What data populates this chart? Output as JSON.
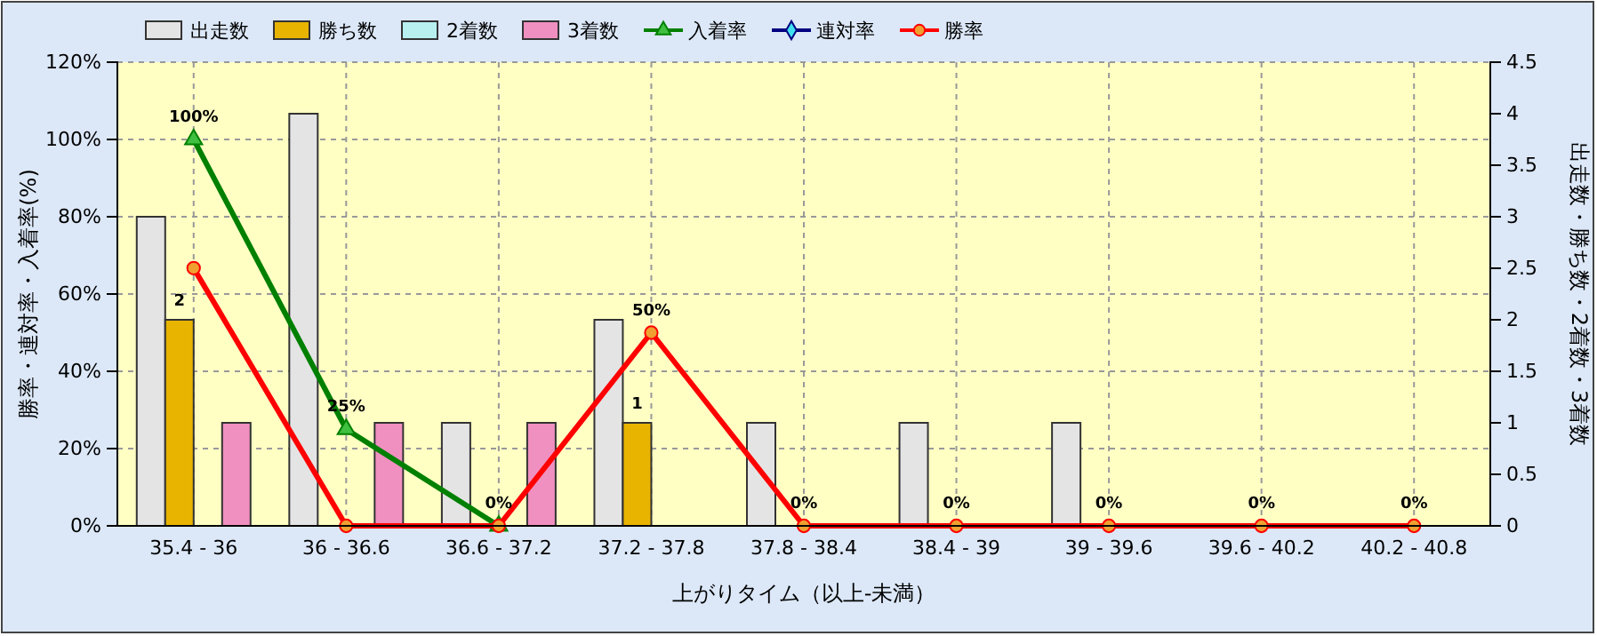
{
  "chart_data": {
    "type": "bar",
    "xlabel": "上がりタイム（以上-未満）",
    "ylabel": "勝率・連対率・入着率(%)",
    "y2label": "出走数・勝ち数・2着数・3着数",
    "categories": [
      "35.4 - 36",
      "36 - 36.6",
      "36.6 - 37.2",
      "37.2 - 37.8",
      "37.8 - 38.4",
      "38.4 - 39",
      "39 - 39.6",
      "39.6 - 40.2",
      "40.2 - 40.8"
    ],
    "series": [
      {
        "name": "出走数",
        "type": "bar",
        "axis": "y2",
        "color": "#e4e4e4",
        "values": [
          3,
          4,
          1,
          2,
          1,
          1,
          1,
          0,
          0
        ]
      },
      {
        "name": "勝ち数",
        "type": "bar",
        "axis": "y2",
        "color": "#e8b400",
        "values": [
          2,
          0,
          0,
          1,
          0,
          0,
          0,
          0,
          0
        ],
        "value_labels": [
          "2",
          null,
          null,
          "1",
          null,
          null,
          null,
          null,
          null
        ]
      },
      {
        "name": "2着数",
        "type": "bar",
        "axis": "y2",
        "color": "#b8f0f0",
        "values": [
          0,
          0,
          0,
          0,
          0,
          0,
          0,
          0,
          0
        ]
      },
      {
        "name": "3着数",
        "type": "bar",
        "axis": "y2",
        "color": "#f090c0",
        "values": [
          1,
          1,
          1,
          0,
          0,
          0,
          0,
          0,
          0
        ]
      },
      {
        "name": "入着率",
        "type": "line",
        "color": "#008000",
        "marker": "triangle",
        "values": [
          100,
          25,
          0,
          null,
          null,
          null,
          null,
          null,
          null
        ],
        "value_labels": [
          "100%",
          "25%",
          "0%",
          null,
          null,
          null,
          null,
          null,
          null
        ]
      },
      {
        "name": "連対率",
        "type": "line",
        "color": "#000080",
        "marker": "diamond",
        "values": [
          null,
          null,
          null,
          null,
          null,
          null,
          null,
          null,
          null
        ]
      },
      {
        "name": "勝率",
        "type": "line",
        "color": "#ff0000",
        "marker": "circle",
        "values": [
          66.7,
          0,
          0,
          50,
          0,
          0,
          0,
          0,
          0
        ],
        "value_labels": [
          null,
          null,
          null,
          "50%",
          "0%",
          "0%",
          "0%",
          "0%",
          "0%"
        ]
      }
    ],
    "ylim": [
      0,
      120
    ],
    "yticks": [
      {
        "value": 0,
        "label": "0%"
      },
      {
        "value": 20,
        "label": "20%"
      },
      {
        "value": 40,
        "label": "40%"
      },
      {
        "value": 60,
        "label": "60%"
      },
      {
        "value": 80,
        "label": "80%"
      },
      {
        "value": 100,
        "label": "100%"
      },
      {
        "value": 120,
        "label": "120%"
      }
    ],
    "y2lim": [
      0,
      4.5
    ],
    "y2ticks": [
      0,
      0.5,
      1,
      1.5,
      2,
      2.5,
      3,
      3.5,
      4,
      4.5
    ],
    "grid": true,
    "legend": "top left"
  }
}
